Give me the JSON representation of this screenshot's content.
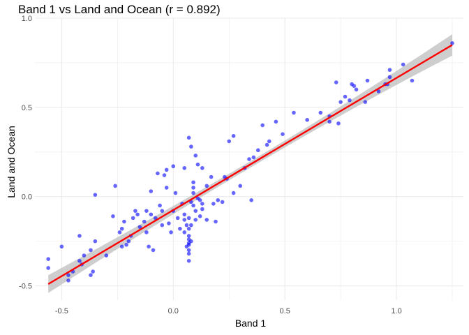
{
  "chart_data": {
    "type": "scatter",
    "title": "Band 1 vs Land and Ocean (r = 0.892)",
    "xlabel": "Band 1",
    "ylabel": "Land and Ocean",
    "xlim": [
      -0.62,
      1.3
    ],
    "ylim": [
      -0.58,
      1.0
    ],
    "x_ticks": [
      -0.5,
      0.0,
      0.5,
      1.0
    ],
    "x_tick_labels": [
      "-0.5",
      "0.0",
      "0.5",
      "1.0"
    ],
    "y_ticks": [
      -0.5,
      0.0,
      0.5,
      1.0
    ],
    "y_tick_labels": [
      "-0.5",
      "0.0",
      "0.5",
      "1.0"
    ],
    "grid": true,
    "legend": "none",
    "colors": {
      "points": "#0000ff",
      "fit_line": "#ff0000",
      "confidence_band": "#bebebe",
      "grid": "#ebebeb"
    },
    "series": [
      {
        "points": [
          [
            -0.56,
            -0.35
          ],
          [
            -0.56,
            -0.4
          ],
          [
            -0.5,
            -0.28
          ],
          [
            -0.47,
            -0.44
          ],
          [
            -0.47,
            -0.47
          ],
          [
            -0.45,
            -0.42
          ],
          [
            -0.42,
            -0.22
          ],
          [
            -0.42,
            -0.36
          ],
          [
            -0.41,
            -0.38
          ],
          [
            -0.4,
            -0.33
          ],
          [
            -0.37,
            -0.3
          ],
          [
            -0.37,
            -0.44
          ],
          [
            -0.36,
            -0.42
          ],
          [
            -0.35,
            0.01
          ],
          [
            -0.35,
            -0.25
          ],
          [
            -0.3,
            -0.33
          ],
          [
            -0.27,
            -0.11
          ],
          [
            -0.26,
            0.06
          ],
          [
            -0.24,
            -0.2
          ],
          [
            -0.23,
            -0.28
          ],
          [
            -0.23,
            -0.18
          ],
          [
            -0.22,
            -0.14
          ],
          [
            -0.21,
            -0.27
          ],
          [
            -0.2,
            -0.25
          ],
          [
            -0.19,
            -0.22
          ],
          [
            -0.18,
            -0.12
          ],
          [
            -0.17,
            -0.08
          ],
          [
            -0.16,
            -0.1
          ],
          [
            -0.15,
            -0.17
          ],
          [
            -0.13,
            -0.14
          ],
          [
            -0.12,
            -0.2
          ],
          [
            -0.12,
            -0.08
          ],
          [
            -0.11,
            -0.28
          ],
          [
            -0.1,
            -0.1
          ],
          [
            -0.1,
            0.03
          ],
          [
            -0.09,
            -0.3
          ],
          [
            -0.08,
            -0.12
          ],
          [
            -0.07,
            0.13
          ],
          [
            -0.06,
            -0.05
          ],
          [
            -0.05,
            -0.08
          ],
          [
            -0.05,
            -0.16
          ],
          [
            -0.04,
            0.12
          ],
          [
            -0.03,
            0.15
          ],
          [
            -0.03,
            0.05
          ],
          [
            -0.02,
            -0.15
          ],
          [
            -0.01,
            -0.2
          ],
          [
            0.0,
            0.17
          ],
          [
            0.0,
            -0.08
          ],
          [
            0.01,
            0.02
          ],
          [
            0.02,
            -0.12
          ],
          [
            0.03,
            -0.18
          ],
          [
            0.04,
            -0.04
          ],
          [
            0.05,
            0.16
          ],
          [
            0.05,
            -0.13
          ],
          [
            0.05,
            -0.2
          ],
          [
            0.05,
            -0.1
          ],
          [
            0.06,
            -0.16
          ],
          [
            0.06,
            -0.28
          ],
          [
            0.07,
            -0.24
          ],
          [
            0.07,
            -0.32
          ],
          [
            0.07,
            -0.36
          ],
          [
            0.07,
            -0.3
          ],
          [
            0.07,
            -0.27
          ],
          [
            0.07,
            -0.26
          ],
          [
            0.07,
            -0.22
          ],
          [
            0.07,
            -0.18
          ],
          [
            0.07,
            -0.12
          ],
          [
            0.07,
            0.33
          ],
          [
            0.08,
            0.28
          ],
          [
            0.08,
            -0.25
          ],
          [
            0.08,
            -0.03
          ],
          [
            0.08,
            -0.16
          ],
          [
            0.09,
            0.08
          ],
          [
            0.09,
            0.02
          ],
          [
            0.09,
            -0.05
          ],
          [
            0.09,
            0.05
          ],
          [
            0.1,
            -0.08
          ],
          [
            0.1,
            -0.13
          ],
          [
            0.1,
            0.23
          ],
          [
            0.11,
            0.18
          ],
          [
            0.11,
            -0.01
          ],
          [
            0.12,
            -0.02
          ],
          [
            0.12,
            -0.11
          ],
          [
            0.13,
            -0.04
          ],
          [
            0.13,
            -0.07
          ],
          [
            0.13,
            0.16
          ],
          [
            0.15,
            0.06
          ],
          [
            0.15,
            -0.13
          ],
          [
            0.17,
            0.11
          ],
          [
            0.18,
            -0.04
          ],
          [
            0.19,
            -0.14
          ],
          [
            0.2,
            -0.02
          ],
          [
            0.22,
            -0.03
          ],
          [
            0.23,
            0.11
          ],
          [
            0.24,
            0.1
          ],
          [
            0.25,
            0.31
          ],
          [
            0.27,
            0.34
          ],
          [
            0.27,
            0.02
          ],
          [
            0.3,
            0.06
          ],
          [
            0.32,
            0.16
          ],
          [
            0.34,
            0.21
          ],
          [
            0.35,
            -0.02
          ],
          [
            0.36,
            0.22
          ],
          [
            0.38,
            0.26
          ],
          [
            0.4,
            0.4
          ],
          [
            0.42,
            0.29
          ],
          [
            0.43,
            0.31
          ],
          [
            0.46,
            0.42
          ],
          [
            0.49,
            0.35
          ],
          [
            0.54,
            0.47
          ],
          [
            0.6,
            0.43
          ],
          [
            0.66,
            0.47
          ],
          [
            0.7,
            0.42
          ],
          [
            0.7,
            0.45
          ],
          [
            0.73,
            0.64
          ],
          [
            0.74,
            0.41
          ],
          [
            0.75,
            0.53
          ],
          [
            0.77,
            0.56
          ],
          [
            0.79,
            0.54
          ],
          [
            0.8,
            0.63
          ],
          [
            0.81,
            0.62
          ],
          [
            0.82,
            0.6
          ],
          [
            0.86,
            0.53
          ],
          [
            0.87,
            0.65
          ],
          [
            0.92,
            0.59
          ],
          [
            0.95,
            0.63
          ],
          [
            0.96,
            0.63
          ],
          [
            0.97,
            0.67
          ],
          [
            0.97,
            0.71
          ],
          [
            1.03,
            0.74
          ],
          [
            1.07,
            0.65
          ],
          [
            1.25,
            0.86
          ]
        ]
      }
    ],
    "fit_line": {
      "x": [
        -0.56,
        1.25
      ],
      "y": [
        -0.49,
        0.85
      ],
      "ci_lower": [
        -0.54,
        0.81
      ],
      "ci_upper": [
        -0.44,
        0.93
      ]
    }
  }
}
